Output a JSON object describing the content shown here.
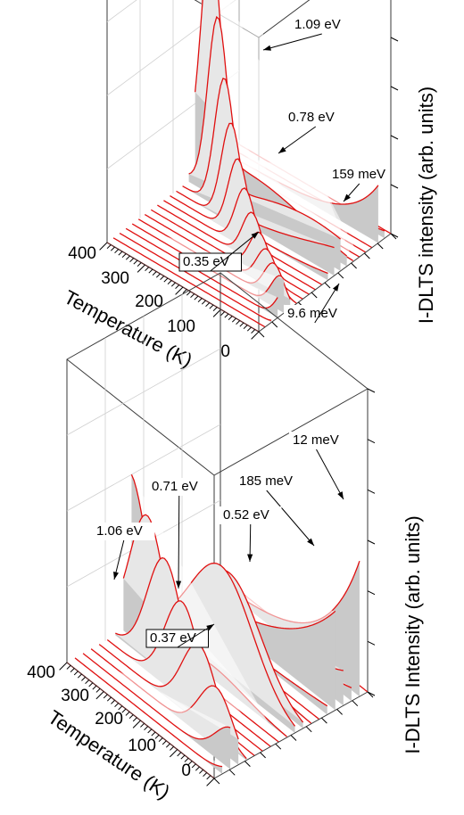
{
  "chart_data": [
    {
      "type": "line",
      "projection": "3d waterfall",
      "ylabel": "Temperature (K)",
      "zlabel": "I-DLTS intensity (arb. units)",
      "y_ticks": [
        "0",
        "100",
        "200",
        "300",
        "400"
      ],
      "ylim": [
        0,
        400
      ],
      "n_traces": 22,
      "line_color": "#e01010",
      "annotations": [
        {
          "text": "1.09 eV",
          "temperature": 400,
          "intensity": 1.0
        },
        {
          "text": "0.78 eV",
          "temperature": 330,
          "intensity": 0.45
        },
        {
          "text": "159 meV",
          "temperature": 90,
          "intensity": 0.22
        },
        {
          "text": "0.35 eV",
          "temperature": 180,
          "intensity": 0.12
        },
        {
          "text": "9.6 meV",
          "temperature": 20,
          "intensity": 0.08
        }
      ]
    },
    {
      "type": "line",
      "projection": "3d waterfall",
      "ylabel": "Temperature (K)",
      "zlabel": "I-DLTS Intensity (arb. units)",
      "y_ticks": [
        "0",
        "100",
        "200",
        "300",
        "400"
      ],
      "ylim": [
        0,
        400
      ],
      "n_traces": 20,
      "line_color": "#e01010",
      "annotations": [
        {
          "text": "12 meV",
          "temperature": 15,
          "intensity": 0.9
        },
        {
          "text": "185 meV",
          "temperature": 100,
          "intensity": 0.6
        },
        {
          "text": "0.71 eV",
          "temperature": 300,
          "intensity": 0.55
        },
        {
          "text": "0.52 eV",
          "temperature": 200,
          "intensity": 0.45
        },
        {
          "text": "1.06 eV",
          "temperature": 380,
          "intensity": 0.5
        },
        {
          "text": "0.37 eV",
          "temperature": 250,
          "intensity": 0.25
        }
      ]
    }
  ]
}
